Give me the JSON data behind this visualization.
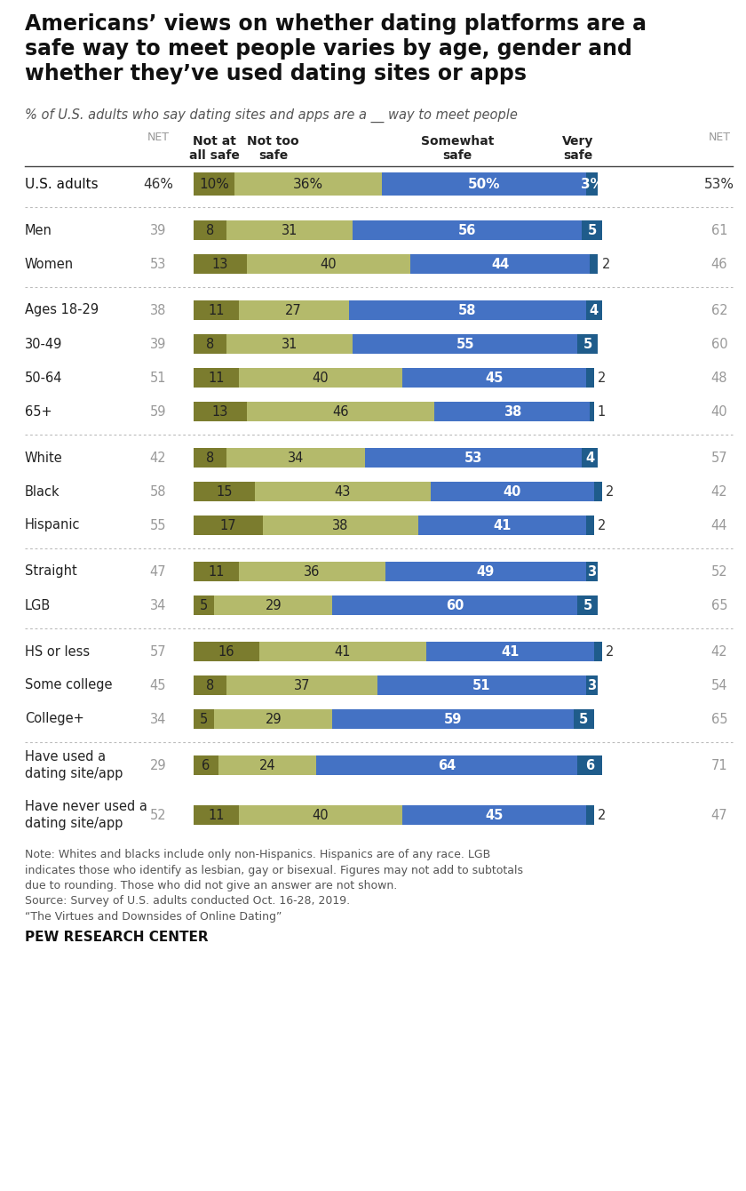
{
  "title": "Americans’ views on whether dating platforms are a\nsafe way to meet people varies by age, gender and\nwhether they’ve used dating sites or apps",
  "subtitle": "% of U.S. adults who say dating sites and apps are a __ way to meet people",
  "rows": [
    {
      "label": "U.S. adults",
      "net_left": "46%",
      "v1": 10,
      "v2": 36,
      "v3": 50,
      "v4": 3,
      "net_right": "53%",
      "is_header": true
    },
    {
      "label": "Men",
      "net_left": "39",
      "v1": 8,
      "v2": 31,
      "v3": 56,
      "v4": 5,
      "net_right": "61"
    },
    {
      "label": "Women",
      "net_left": "53",
      "v1": 13,
      "v2": 40,
      "v3": 44,
      "v4": 2,
      "net_right": "46"
    },
    {
      "label": "Ages 18-29",
      "net_left": "38",
      "v1": 11,
      "v2": 27,
      "v3": 58,
      "v4": 4,
      "net_right": "62"
    },
    {
      "label": "30-49",
      "net_left": "39",
      "v1": 8,
      "v2": 31,
      "v3": 55,
      "v4": 5,
      "net_right": "60"
    },
    {
      "label": "50-64",
      "net_left": "51",
      "v1": 11,
      "v2": 40,
      "v3": 45,
      "v4": 2,
      "net_right": "48"
    },
    {
      "label": "65+",
      "net_left": "59",
      "v1": 13,
      "v2": 46,
      "v3": 38,
      "v4": 1,
      "net_right": "40"
    },
    {
      "label": "White",
      "net_left": "42",
      "v1": 8,
      "v2": 34,
      "v3": 53,
      "v4": 4,
      "net_right": "57"
    },
    {
      "label": "Black",
      "net_left": "58",
      "v1": 15,
      "v2": 43,
      "v3": 40,
      "v4": 2,
      "net_right": "42"
    },
    {
      "label": "Hispanic",
      "net_left": "55",
      "v1": 17,
      "v2": 38,
      "v3": 41,
      "v4": 2,
      "net_right": "44"
    },
    {
      "label": "Straight",
      "net_left": "47",
      "v1": 11,
      "v2": 36,
      "v3": 49,
      "v4": 3,
      "net_right": "52"
    },
    {
      "label": "LGB",
      "net_left": "34",
      "v1": 5,
      "v2": 29,
      "v3": 60,
      "v4": 5,
      "net_right": "65"
    },
    {
      "label": "HS or less",
      "net_left": "57",
      "v1": 16,
      "v2": 41,
      "v3": 41,
      "v4": 2,
      "net_right": "42"
    },
    {
      "label": "Some college",
      "net_left": "45",
      "v1": 8,
      "v2": 37,
      "v3": 51,
      "v4": 3,
      "net_right": "54"
    },
    {
      "label": "College+",
      "net_left": "34",
      "v1": 5,
      "v2": 29,
      "v3": 59,
      "v4": 5,
      "net_right": "65"
    },
    {
      "label": "Have used a\ndating site/app",
      "net_left": "29",
      "v1": 6,
      "v2": 24,
      "v3": 64,
      "v4": 6,
      "net_right": "71",
      "multiline": true
    },
    {
      "label": "Have never used a\ndating site/app",
      "net_left": "52",
      "v1": 11,
      "v2": 40,
      "v3": 45,
      "v4": 2,
      "net_right": "47",
      "multiline": true
    }
  ],
  "separators_after": [
    0,
    2,
    6,
    9,
    11,
    14
  ],
  "col_headers": [
    "Not at\nall safe",
    "Not too\nsafe",
    "Somewhat\nsafe",
    "Very\nsafe"
  ],
  "color_v1": "#7b7c2e",
  "color_v2": "#b4ba6b",
  "color_v3": "#4472c4",
  "color_v4": "#1f5c8b",
  "note": "Note: Whites and blacks include only non-Hispanics. Hispanics are of any race. LGB\nindicates those who identify as lesbian, gay or bisexual. Figures may not add to subtotals\ndue to rounding. Those who did not give an answer are not shown.",
  "source": "Source: Survey of U.S. adults conducted Oct. 16-28, 2019.\n“The Virtues and Downsides of Online Dating”",
  "branding": "PEW RESEARCH CENTER",
  "bg_color": "#ffffff"
}
